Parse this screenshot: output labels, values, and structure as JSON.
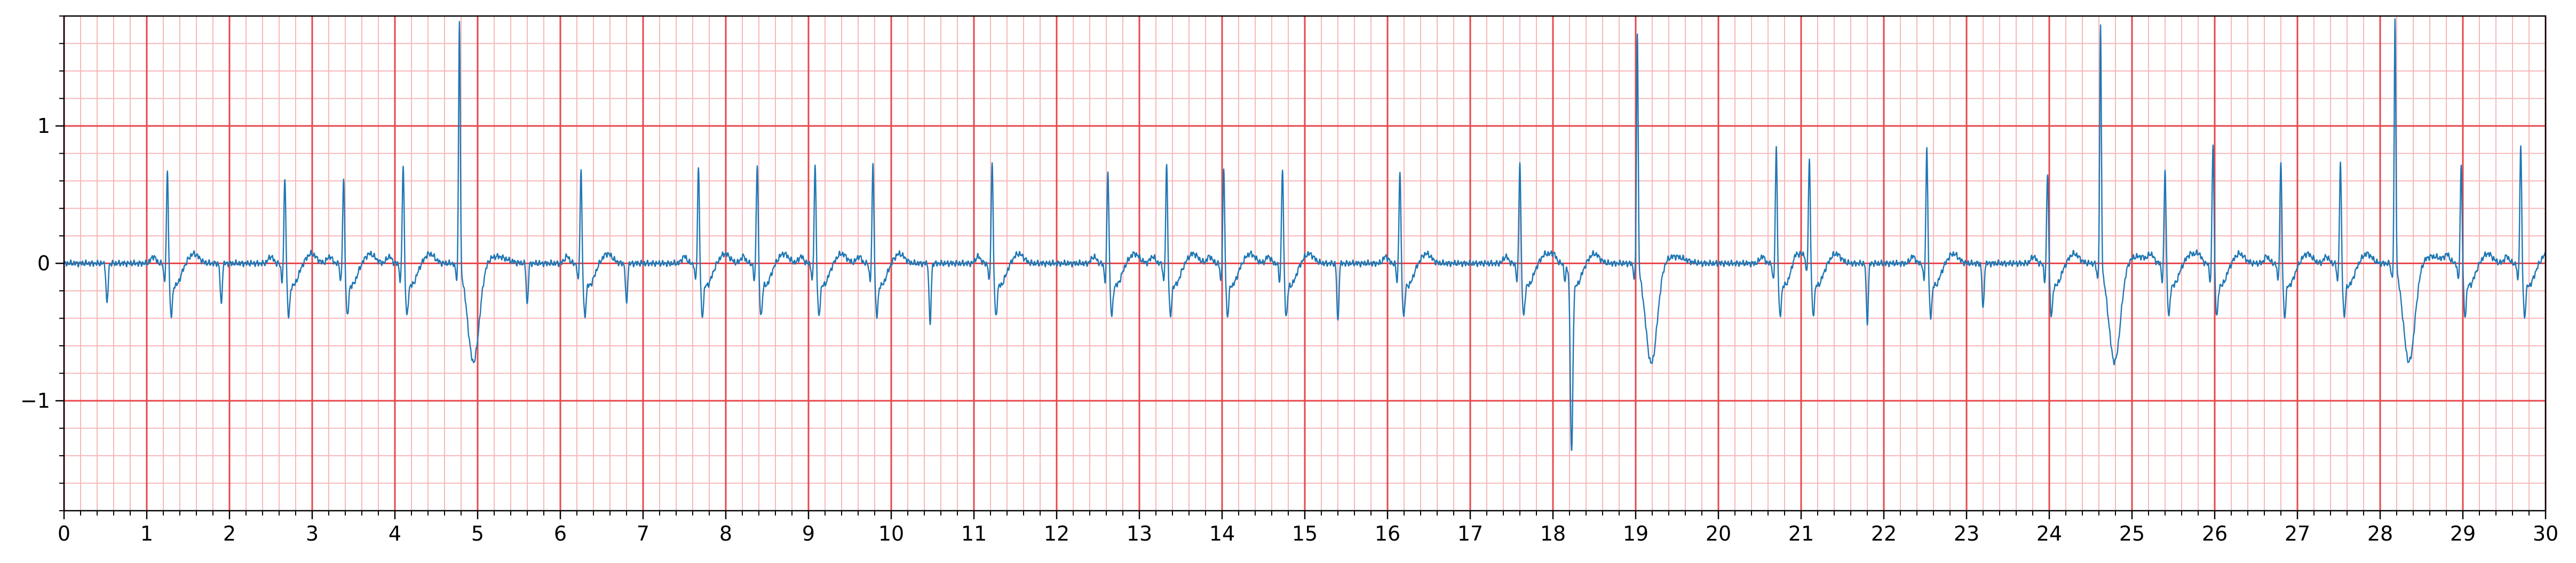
{
  "chart_data": {
    "type": "line",
    "title": "",
    "xlabel": "",
    "ylabel": "",
    "xlim": [
      0,
      30
    ],
    "ylim": [
      -1.8,
      1.8
    ],
    "x_major_ticks": [
      "0",
      "1",
      "2",
      "3",
      "4",
      "5",
      "6",
      "7",
      "8",
      "9",
      "10",
      "11",
      "12",
      "13",
      "14",
      "15",
      "16",
      "17",
      "18",
      "19",
      "20",
      "21",
      "22",
      "23",
      "24",
      "25",
      "26",
      "27",
      "28",
      "29",
      "30"
    ],
    "y_major_ticks": [
      {
        "value": -1,
        "label": "−1"
      },
      {
        "value": 0,
        "label": "0"
      },
      {
        "value": 1,
        "label": "1"
      }
    ],
    "grid": {
      "major": true,
      "minor": true,
      "major_step_x": 1,
      "minor_step_x": 0.2,
      "major_step_y": 1,
      "minor_step_y": 0.2
    },
    "colors": {
      "trace": "#1f77b4",
      "major_grid": "#e8474b",
      "minor_grid": "#f7b8ba",
      "axes": "#000000"
    },
    "series": [
      {
        "beats": [
          {
            "t": 1.25,
            "type": "normal",
            "r": 0.7
          },
          {
            "t": 2.67,
            "type": "normal",
            "r": 0.66
          },
          {
            "t": 3.38,
            "type": "normal",
            "r": 0.65
          },
          {
            "t": 4.1,
            "type": "normal",
            "r": 0.76
          },
          {
            "t": 4.78,
            "type": "ectopic",
            "r": 1.8,
            "s": -0.72
          },
          {
            "t": 6.25,
            "type": "normal",
            "r": 0.71
          },
          {
            "t": 7.67,
            "type": "normal",
            "r": 0.74
          },
          {
            "t": 8.38,
            "type": "normal",
            "r": 0.77
          },
          {
            "t": 9.08,
            "type": "normal",
            "r": 0.76
          },
          {
            "t": 9.78,
            "type": "normal",
            "r": 0.76
          },
          {
            "t": 11.22,
            "type": "normal",
            "r": 0.78
          },
          {
            "t": 12.62,
            "type": "normal",
            "r": 0.71
          },
          {
            "t": 13.33,
            "type": "normal",
            "r": 0.75
          },
          {
            "t": 14.02,
            "type": "normal",
            "r": 0.72
          },
          {
            "t": 14.73,
            "type": "normal",
            "r": 0.73
          },
          {
            "t": 16.15,
            "type": "normal",
            "r": 0.7
          },
          {
            "t": 17.6,
            "type": "normal",
            "r": 0.78
          },
          {
            "t": 18.18,
            "type": "normal",
            "r": 0.0,
            "s": -1.0
          },
          {
            "t": 19.02,
            "type": "ectopic",
            "r": 1.72,
            "s": -0.73
          },
          {
            "t": 20.7,
            "type": "normal",
            "r": 0.88
          },
          {
            "t": 21.1,
            "type": "normal",
            "r": 0.77
          },
          {
            "t": 22.52,
            "type": "normal",
            "r": 0.88
          },
          {
            "t": 23.98,
            "type": "normal",
            "r": 0.7
          },
          {
            "t": 24.62,
            "type": "ectopic",
            "r": 1.76,
            "s": -0.72
          },
          {
            "t": 25.4,
            "type": "normal",
            "r": 0.72
          },
          {
            "t": 25.98,
            "type": "normal",
            "r": 0.91
          },
          {
            "t": 26.8,
            "type": "normal",
            "r": 0.77
          },
          {
            "t": 27.52,
            "type": "normal",
            "r": 0.76
          },
          {
            "t": 28.18,
            "type": "ectopic",
            "r": 1.8,
            "s": -0.72
          },
          {
            "t": 28.98,
            "type": "normal",
            "r": 0.76
          },
          {
            "t": 29.7,
            "type": "normal",
            "r": 0.89
          }
        ],
        "baseline_dips": [
          {
            "t": 0.52,
            "v": -0.3
          },
          {
            "t": 1.9,
            "v": -0.3
          },
          {
            "t": 5.6,
            "v": -0.3
          },
          {
            "t": 6.8,
            "v": -0.3
          },
          {
            "t": 10.47,
            "v": -0.45
          },
          {
            "t": 15.4,
            "v": -0.43
          },
          {
            "t": 21.8,
            "v": -0.43
          },
          {
            "t": 23.2,
            "v": -0.34
          }
        ]
      }
    ]
  }
}
